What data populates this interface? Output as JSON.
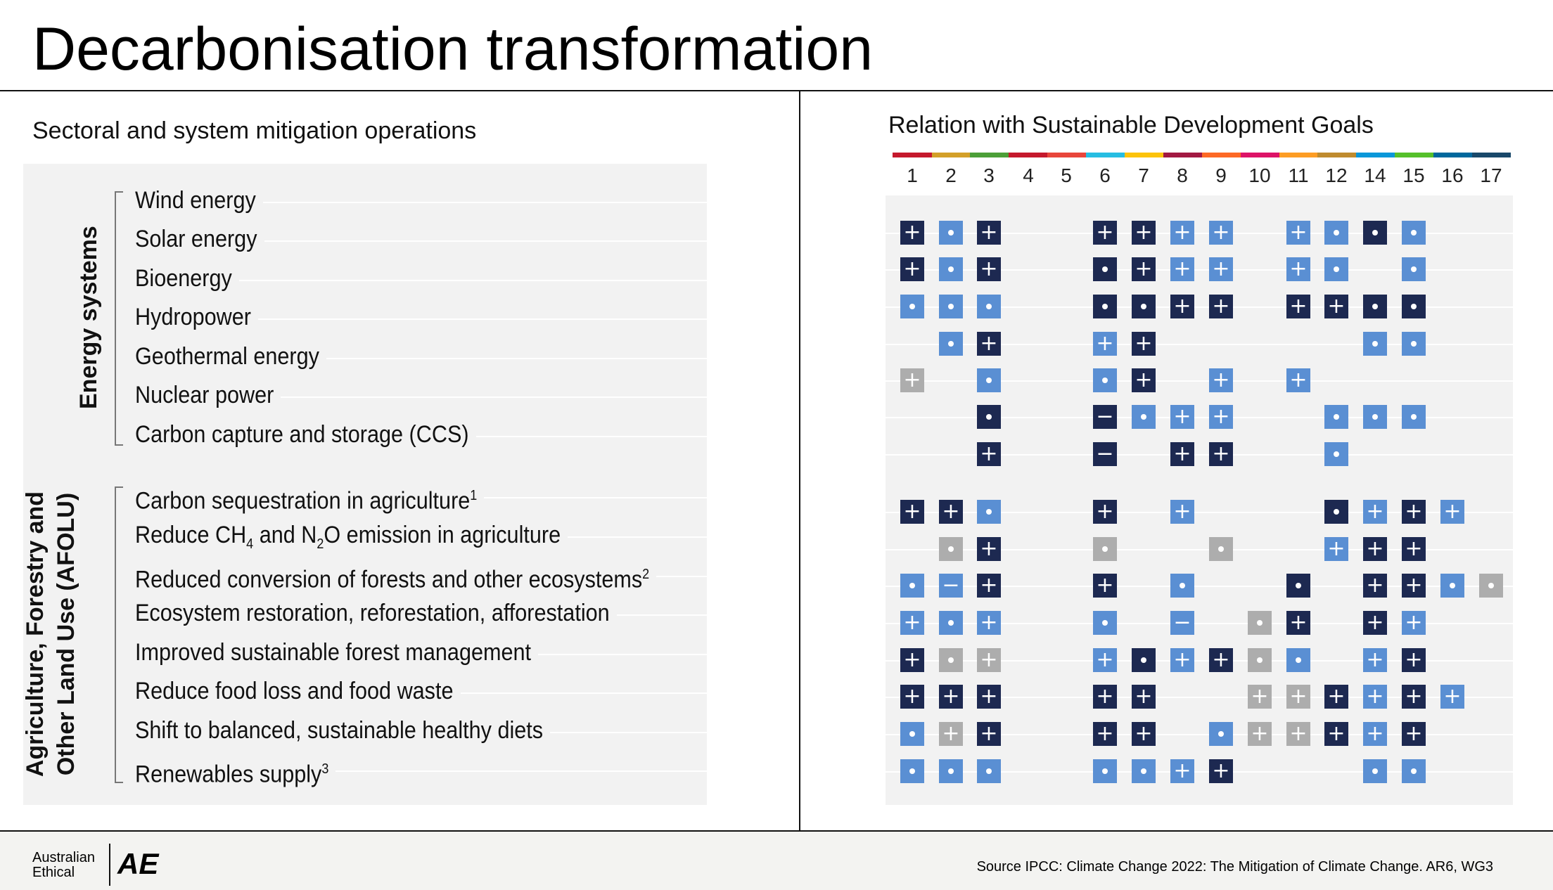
{
  "title": "Decarbonisation transformation",
  "left_heading": "Sectoral and system mitigation operations",
  "right_heading": "Relation with Sustainable Development Goals",
  "groups": [
    {
      "label": "Energy systems"
    },
    {
      "label_line1": "Agriculture, Forestry and",
      "label_line2": "Other Land Use (AFOLU)"
    }
  ],
  "footer": {
    "logo_line1": "Australian",
    "logo_line2": "Ethical",
    "logo_mark": "AE",
    "source": "Source IPCC: Climate Change 2022: The Mitigation of Climate Change. AR6, WG3"
  },
  "chart_data": {
    "type": "table",
    "title": "Relation with Sustainable Development Goals",
    "legend_symbols": {
      "+": "plus",
      "o": "dot",
      "-": "minus"
    },
    "shade_colors": {
      "D": "#1d2951",
      "L": "#5a8fd3",
      "G": "#adadad"
    },
    "goals": [
      "1",
      "2",
      "3",
      "4",
      "5",
      "6",
      "7",
      "8",
      "9",
      "10",
      "11",
      "12",
      "14",
      "15",
      "16",
      "17"
    ],
    "goal_colors": [
      "#c5192d",
      "#d3a029",
      "#4c9f38",
      "#c5192d",
      "#e8463b",
      "#26bde2",
      "#fcc30b",
      "#a21942",
      "#fd6925",
      "#dd1367",
      "#fd9d24",
      "#bf8b2e",
      "#0a97d9",
      "#56c02b",
      "#00689d",
      "#19486a"
    ],
    "rows": [
      {
        "label": "Wind energy",
        "group": 0,
        "cells": [
          "D+",
          "Lo",
          "D+",
          "",
          "",
          "D+",
          "D+",
          "L+",
          "L+",
          "",
          "L+",
          "Lo",
          "Do",
          "Lo",
          "",
          ""
        ]
      },
      {
        "label": "Solar energy",
        "group": 0,
        "cells": [
          "D+",
          "Lo",
          "D+",
          "",
          "",
          "Do",
          "D+",
          "L+",
          "L+",
          "",
          "L+",
          "Lo",
          "",
          "Lo",
          "",
          ""
        ]
      },
      {
        "label": "Bioenergy",
        "group": 0,
        "cells": [
          "Lo",
          "Lo",
          "Lo",
          "",
          "",
          "Do",
          "Do",
          "D+",
          "D+",
          "",
          "D+",
          "D+",
          "Do",
          "Do",
          "",
          ""
        ]
      },
      {
        "label": "Hydropower",
        "group": 0,
        "cells": [
          "",
          "Lo",
          "D+",
          "",
          "",
          "L+",
          "D+",
          "",
          "",
          "",
          "",
          "",
          "Lo",
          "Lo",
          "",
          ""
        ]
      },
      {
        "label": "Geothermal energy",
        "group": 0,
        "cells": [
          "G+",
          "",
          "Lo",
          "",
          "",
          "Lo",
          "D+",
          "",
          "L+",
          "",
          "L+",
          "",
          "",
          "",
          "",
          ""
        ]
      },
      {
        "label": "Nuclear power",
        "group": 0,
        "cells": [
          "",
          "",
          "Do",
          "",
          "",
          "D-",
          "Lo",
          "L+",
          "L+",
          "",
          "",
          "Lo",
          "Lo",
          "Lo",
          "",
          ""
        ]
      },
      {
        "label": "Carbon capture and storage (CCS)",
        "group": 0,
        "cells": [
          "",
          "",
          "D+",
          "",
          "",
          "D-",
          "",
          "D+",
          "D+",
          "",
          "",
          "Lo",
          "",
          "",
          "",
          ""
        ]
      },
      {
        "label": "Carbon sequestration in agriculture",
        "sup": "1",
        "group": 1,
        "cells": [
          "D+",
          "D+",
          "Lo",
          "",
          "",
          "D+",
          "",
          "L+",
          "",
          "",
          "",
          "Do",
          "L+",
          "D+",
          "L+",
          ""
        ]
      },
      {
        "label_a": "Reduce CH",
        "label_b": "4",
        "label_c": " and N",
        "label_d": "2",
        "label_e": "O emission in agriculture",
        "group": 1,
        "cells": [
          "",
          "Go",
          "D+",
          "",
          "",
          "Go",
          "",
          "",
          "Go",
          "",
          "",
          "L+",
          "D+",
          "D+",
          "",
          ""
        ]
      },
      {
        "label": "Reduced conversion of forests and other ecosystems",
        "sup": "2",
        "group": 1,
        "cells": [
          "Lo",
          "L-",
          "D+",
          "",
          "",
          "D+",
          "",
          "Lo",
          "",
          "",
          "Do",
          "",
          "D+",
          "D+",
          "Lo",
          "Go"
        ]
      },
      {
        "label": "Ecosystem restoration, reforestation, afforestation",
        "group": 1,
        "cells": [
          "L+",
          "Lo",
          "L+",
          "",
          "",
          "Lo",
          "",
          "L-",
          "",
          "Go",
          "D+",
          "",
          "D+",
          "L+",
          "",
          ""
        ]
      },
      {
        "label": "Improved sustainable forest management",
        "group": 1,
        "cells": [
          "D+",
          "Go",
          "G+",
          "",
          "",
          "L+",
          "Do",
          "L+",
          "D+",
          "Go",
          "Lo",
          "",
          "L+",
          "D+",
          "",
          ""
        ]
      },
      {
        "label": "Reduce food loss and food waste",
        "group": 1,
        "cells": [
          "D+",
          "D+",
          "D+",
          "",
          "",
          "D+",
          "D+",
          "",
          "",
          "G+",
          "G+",
          "D+",
          "L+",
          "D+",
          "L+",
          ""
        ]
      },
      {
        "label": "Shift to balanced, sustainable healthy diets",
        "group": 1,
        "cells": [
          "Lo",
          "G+",
          "D+",
          "",
          "",
          "D+",
          "D+",
          "",
          "Lo",
          "G+",
          "G+",
          "D+",
          "L+",
          "D+",
          "",
          ""
        ]
      },
      {
        "label": "Renewables supply",
        "sup": "3",
        "group": 1,
        "cells": [
          "Lo",
          "Lo",
          "Lo",
          "",
          "",
          "Lo",
          "Lo",
          "L+",
          "D+",
          "",
          "",
          "",
          "Lo",
          "Lo",
          "",
          ""
        ]
      }
    ]
  }
}
